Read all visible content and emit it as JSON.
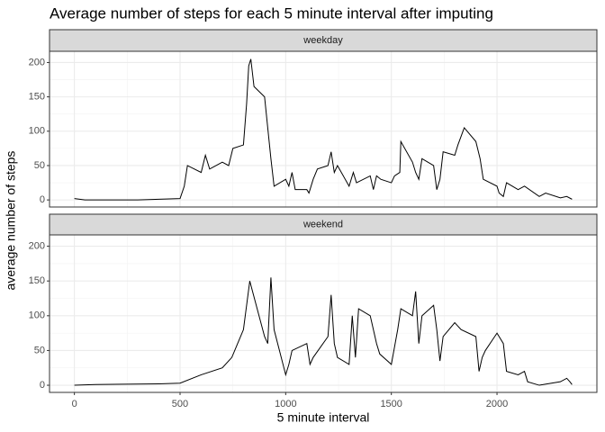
{
  "title": "Average number of steps for each 5 minute interval after imputing",
  "x_label": "5 minute interval",
  "y_label": "average number of steps",
  "chart_data": [
    {
      "type": "line",
      "facet": "weekday",
      "color": "#000000",
      "grid": true,
      "xlim": [
        -117.75,
        2472.75
      ],
      "ylim": [
        -10.3,
        216.3
      ],
      "xticks": [
        0,
        500,
        1000,
        1500,
        2000
      ],
      "yticks": [
        0,
        50,
        100,
        150,
        200
      ],
      "x": [
        0,
        50,
        100,
        300,
        500,
        520,
        535,
        600,
        620,
        640,
        700,
        730,
        750,
        800,
        815,
        825,
        835,
        850,
        900,
        920,
        930,
        945,
        1000,
        1015,
        1030,
        1045,
        1100,
        1110,
        1130,
        1150,
        1200,
        1215,
        1230,
        1245,
        1300,
        1320,
        1335,
        1400,
        1415,
        1430,
        1450,
        1500,
        1515,
        1540,
        1545,
        1600,
        1615,
        1630,
        1645,
        1700,
        1715,
        1730,
        1745,
        1800,
        1815,
        1845,
        1900,
        1920,
        1935,
        2000,
        2010,
        2030,
        2045,
        2100,
        2130,
        2200,
        2230,
        2300,
        2330,
        2355
      ],
      "values": [
        2,
        0,
        0,
        0,
        2,
        20,
        50,
        40,
        65,
        45,
        55,
        50,
        75,
        80,
        140,
        195,
        205,
        165,
        150,
        90,
        60,
        20,
        30,
        20,
        40,
        15,
        15,
        10,
        30,
        45,
        50,
        70,
        40,
        50,
        20,
        40,
        25,
        35,
        15,
        35,
        30,
        25,
        35,
        40,
        85,
        55,
        40,
        30,
        60,
        50,
        15,
        30,
        70,
        65,
        80,
        105,
        85,
        60,
        30,
        20,
        10,
        5,
        25,
        15,
        20,
        5,
        10,
        3,
        5,
        1
      ]
    },
    {
      "type": "line",
      "facet": "weekend",
      "color": "#000000",
      "grid": true,
      "xlim": [
        -117.75,
        2472.75
      ],
      "ylim": [
        -10.3,
        216.3
      ],
      "xticks": [
        0,
        500,
        1000,
        1500,
        2000
      ],
      "yticks": [
        0,
        50,
        100,
        150,
        200
      ],
      "x": [
        0,
        100,
        400,
        500,
        600,
        700,
        745,
        800,
        830,
        900,
        915,
        930,
        945,
        1000,
        1015,
        1030,
        1100,
        1115,
        1130,
        1200,
        1215,
        1230,
        1245,
        1300,
        1315,
        1330,
        1345,
        1400,
        1430,
        1445,
        1500,
        1530,
        1545,
        1600,
        1615,
        1630,
        1645,
        1700,
        1715,
        1730,
        1745,
        1800,
        1830,
        1900,
        1915,
        1930,
        1945,
        2000,
        2030,
        2045,
        2100,
        2130,
        2145,
        2200,
        2300,
        2330,
        2345,
        2355
      ],
      "values": [
        0,
        1,
        2,
        3,
        15,
        25,
        40,
        80,
        150,
        70,
        60,
        155,
        80,
        15,
        30,
        50,
        60,
        30,
        40,
        70,
        130,
        60,
        40,
        30,
        100,
        40,
        110,
        100,
        60,
        45,
        30,
        80,
        110,
        100,
        135,
        60,
        100,
        115,
        80,
        35,
        70,
        90,
        80,
        70,
        20,
        40,
        50,
        75,
        60,
        20,
        15,
        20,
        5,
        0,
        5,
        10,
        5,
        1
      ]
    }
  ]
}
